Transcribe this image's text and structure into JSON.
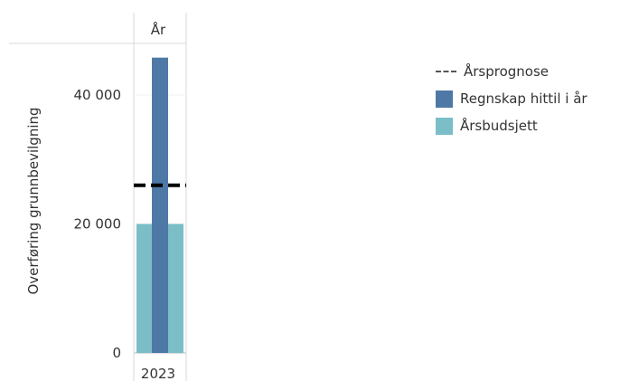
{
  "chart_data": {
    "type": "bar",
    "column_header": "År",
    "categories": [
      "2023"
    ],
    "ylabel": "Overføring grunnbevilgning",
    "ylim": [
      0,
      48000
    ],
    "yticks": [
      0,
      20000,
      40000
    ],
    "ytick_labels": [
      "0",
      "20 000",
      "40 000"
    ],
    "series": [
      {
        "name": "Årsbudsjett",
        "values": [
          20000
        ],
        "color": "#7bbec7"
      },
      {
        "name": "Regnskap hittil i år",
        "values": [
          45800
        ],
        "color": "#4e79a7"
      }
    ],
    "reference_lines": [
      {
        "name": "Årsprognose",
        "values": [
          26000
        ],
        "color": "#000000",
        "style": "dashed"
      }
    ],
    "legend": {
      "position": "right",
      "items": [
        {
          "label": "Årsprognose",
          "kind": "dashed-line",
          "color": "#000000"
        },
        {
          "label": "Regnskap hittil i år",
          "kind": "swatch",
          "color": "#4e79a7"
        },
        {
          "label": "Årsbudsjett",
          "kind": "swatch",
          "color": "#7bbec7"
        }
      ]
    },
    "grid": true
  }
}
